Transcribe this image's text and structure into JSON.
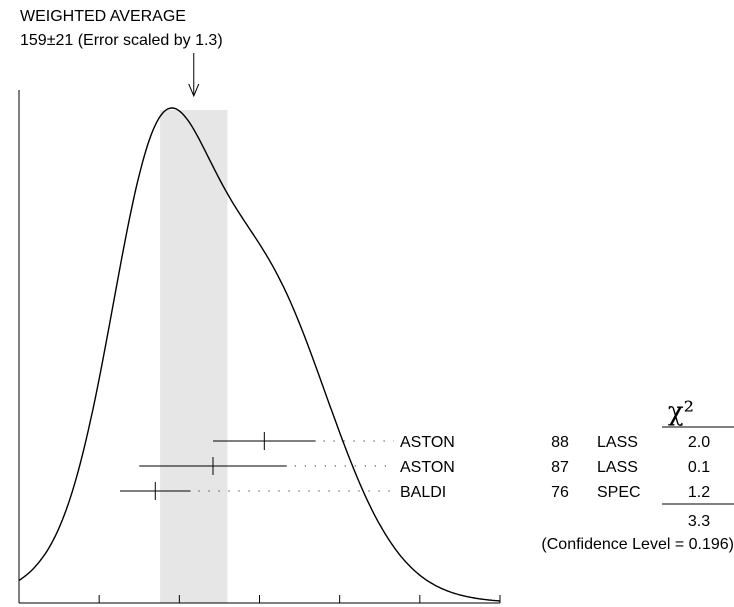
{
  "chart_data": {
    "type": "ideogram",
    "title_line1": "WEIGHTED AVERAGE",
    "title_line2": "159±21 (Error scaled by 1.3)",
    "weighted_average": 159,
    "error": 21,
    "error_scale": 1.3,
    "band": [
      138,
      180
    ],
    "xlim": [
      50,
      350
    ],
    "x_ticks": [
      50,
      100,
      150,
      200,
      250,
      300,
      350
    ],
    "chi2_header": "χ²",
    "measurements": [
      {
        "value": 203,
        "low": 171,
        "high": 235,
        "author": "ASTON",
        "year": "88",
        "tecn": "LASS",
        "chi2": "2.0"
      },
      {
        "value": 171,
        "low": 125,
        "high": 217,
        "author": "ASTON",
        "year": "87",
        "tecn": "LASS",
        "chi2": "0.1"
      },
      {
        "value": 135,
        "low": 113,
        "high": 157,
        "author": "BALDI",
        "year": "76",
        "tecn": "SPEC",
        "chi2": "1.2"
      }
    ],
    "chi2_total": "3.3",
    "confidence_level": "(Confidence Level = 0.196)"
  }
}
